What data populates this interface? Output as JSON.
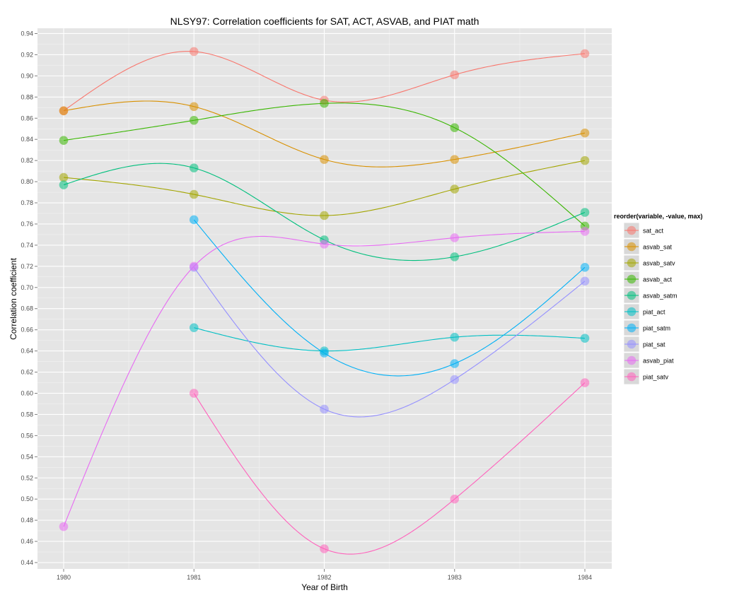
{
  "chart_data": {
    "type": "line",
    "title": "NLSY97: Correlation coefficients for SAT, ACT, ASVAB, and PIAT math",
    "xlabel": "Year of Birth",
    "ylabel": "Correlation coefficient",
    "x": [
      1980,
      1981,
      1982,
      1983,
      1984
    ],
    "x_tick_labels": [
      "1980",
      "1981",
      "1982",
      "1983",
      "1984"
    ],
    "ylim": [
      0.434,
      0.945
    ],
    "y_ticks": [
      0.44,
      0.46,
      0.48,
      0.5,
      0.52,
      0.54,
      0.56,
      0.58,
      0.6,
      0.62,
      0.64,
      0.66,
      0.68,
      0.7,
      0.72,
      0.74,
      0.76,
      0.78,
      0.8,
      0.82,
      0.84,
      0.86,
      0.88,
      0.9,
      0.92,
      0.94
    ],
    "y_tick_labels": [
      "0.44",
      "0.46",
      "0.48",
      "0.50",
      "0.52",
      "0.54",
      "0.56",
      "0.58",
      "0.60",
      "0.62",
      "0.64",
      "0.66",
      "0.68",
      "0.70",
      "0.72",
      "0.74",
      "0.76",
      "0.78",
      "0.80",
      "0.82",
      "0.84",
      "0.86",
      "0.88",
      "0.90",
      "0.92",
      "0.94"
    ],
    "grid": true,
    "legend_title": "reorder(variable, -value, max)",
    "legend_position": "right",
    "series": [
      {
        "name": "sat_act",
        "color": "#F8766D",
        "x": [
          1980,
          1981,
          1982,
          1983,
          1984
        ],
        "values": [
          0.867,
          0.923,
          0.877,
          0.901,
          0.921
        ]
      },
      {
        "name": "asvab_sat",
        "color": "#D89000",
        "x": [
          1980,
          1981,
          1982,
          1983,
          1984
        ],
        "values": [
          0.867,
          0.871,
          0.821,
          0.821,
          0.846
        ]
      },
      {
        "name": "asvab_satv",
        "color": "#A3A500",
        "x": [
          1980,
          1981,
          1982,
          1983,
          1984
        ],
        "values": [
          0.804,
          0.788,
          0.768,
          0.793,
          0.82
        ]
      },
      {
        "name": "asvab_act",
        "color": "#39B600",
        "x": [
          1980,
          1981,
          1982,
          1983,
          1984
        ],
        "values": [
          0.839,
          0.858,
          0.874,
          0.851,
          0.758
        ]
      },
      {
        "name": "asvab_satm",
        "color": "#00BF7D",
        "x": [
          1980,
          1981,
          1982,
          1983,
          1984
        ],
        "values": [
          0.797,
          0.813,
          0.745,
          0.729,
          0.771
        ]
      },
      {
        "name": "piat_act",
        "color": "#00BFC4",
        "x": [
          1981,
          1982,
          1983,
          1984
        ],
        "values": [
          0.662,
          0.64,
          0.653,
          0.652
        ]
      },
      {
        "name": "piat_satm",
        "color": "#00B0F6",
        "x": [
          1981,
          1982,
          1983,
          1984
        ],
        "values": [
          0.764,
          0.638,
          0.628,
          0.719
        ]
      },
      {
        "name": "piat_sat",
        "color": "#9590FF",
        "x": [
          1981,
          1982,
          1983,
          1984
        ],
        "values": [
          0.719,
          0.585,
          0.613,
          0.706
        ]
      },
      {
        "name": "asvab_piat",
        "color": "#E76BF3",
        "x": [
          1980,
          1981,
          1982,
          1983,
          1984
        ],
        "values": [
          0.474,
          0.72,
          0.741,
          0.747,
          0.753
        ]
      },
      {
        "name": "piat_satv",
        "color": "#FF62BC",
        "x": [
          1981,
          1982,
          1983,
          1984
        ],
        "values": [
          0.6,
          0.453,
          0.5,
          0.61
        ]
      }
    ]
  }
}
